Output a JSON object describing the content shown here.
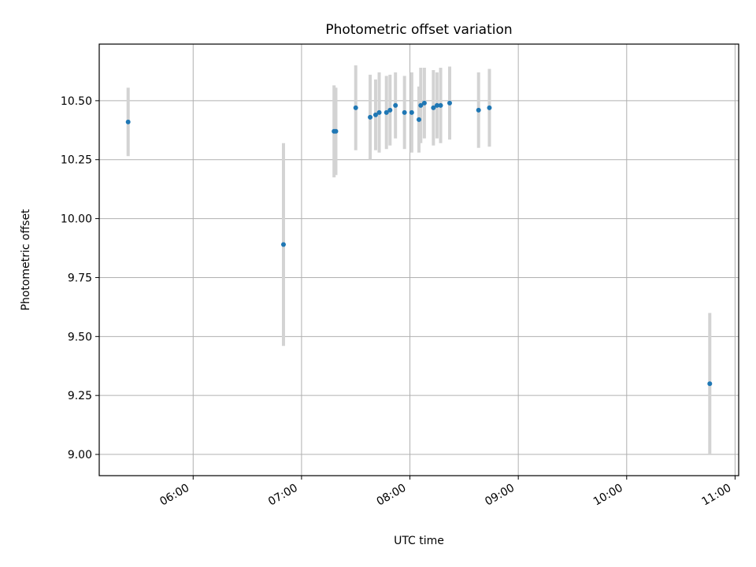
{
  "chart_data": {
    "type": "scatter",
    "title": "Photometric offset variation",
    "xlabel": "UTC time",
    "ylabel": "Photometric offset",
    "xlim": [
      "05:08",
      "11:02"
    ],
    "ylim": [
      8.91,
      10.74
    ],
    "x_ticks": [
      "06:00",
      "07:00",
      "08:00",
      "09:00",
      "10:00",
      "11:00"
    ],
    "y_ticks": [
      "9.00",
      "9.25",
      "9.50",
      "9.75",
      "10.00",
      "10.25",
      "10.50"
    ],
    "grid": true,
    "colors": {
      "marker": "#1f77b4",
      "errorbar": "#d3d3d3",
      "grid": "#b0b0b0"
    },
    "series": [
      {
        "points": [
          {
            "x": "05:24",
            "y": 10.41,
            "err": 0.145
          },
          {
            "x": "06:50",
            "y": 9.89,
            "err": 0.43
          },
          {
            "x": "07:18",
            "y": 10.37,
            "err": 0.195
          },
          {
            "x": "07:19",
            "y": 10.37,
            "err": 0.185
          },
          {
            "x": "07:30",
            "y": 10.47,
            "err": 0.18
          },
          {
            "x": "07:38",
            "y": 10.43,
            "err": 0.18
          },
          {
            "x": "07:41",
            "y": 10.44,
            "err": 0.15
          },
          {
            "x": "07:43",
            "y": 10.45,
            "err": 0.17
          },
          {
            "x": "07:47",
            "y": 10.45,
            "err": 0.155
          },
          {
            "x": "07:49",
            "y": 10.46,
            "err": 0.15
          },
          {
            "x": "07:52",
            "y": 10.48,
            "err": 0.14
          },
          {
            "x": "07:57",
            "y": 10.45,
            "err": 0.155
          },
          {
            "x": "08:01",
            "y": 10.45,
            "err": 0.17
          },
          {
            "x": "08:05",
            "y": 10.42,
            "err": 0.14
          },
          {
            "x": "08:06",
            "y": 10.48,
            "err": 0.16
          },
          {
            "x": "08:08",
            "y": 10.49,
            "err": 0.15
          },
          {
            "x": "08:13",
            "y": 10.47,
            "err": 0.16
          },
          {
            "x": "08:15",
            "y": 10.48,
            "err": 0.14
          },
          {
            "x": "08:17",
            "y": 10.48,
            "err": 0.16
          },
          {
            "x": "08:22",
            "y": 10.49,
            "err": 0.155
          },
          {
            "x": "08:38",
            "y": 10.46,
            "err": 0.16
          },
          {
            "x": "08:44",
            "y": 10.47,
            "err": 0.165
          },
          {
            "x": "10:46",
            "y": 9.3,
            "err": 0.3
          }
        ]
      }
    ]
  }
}
